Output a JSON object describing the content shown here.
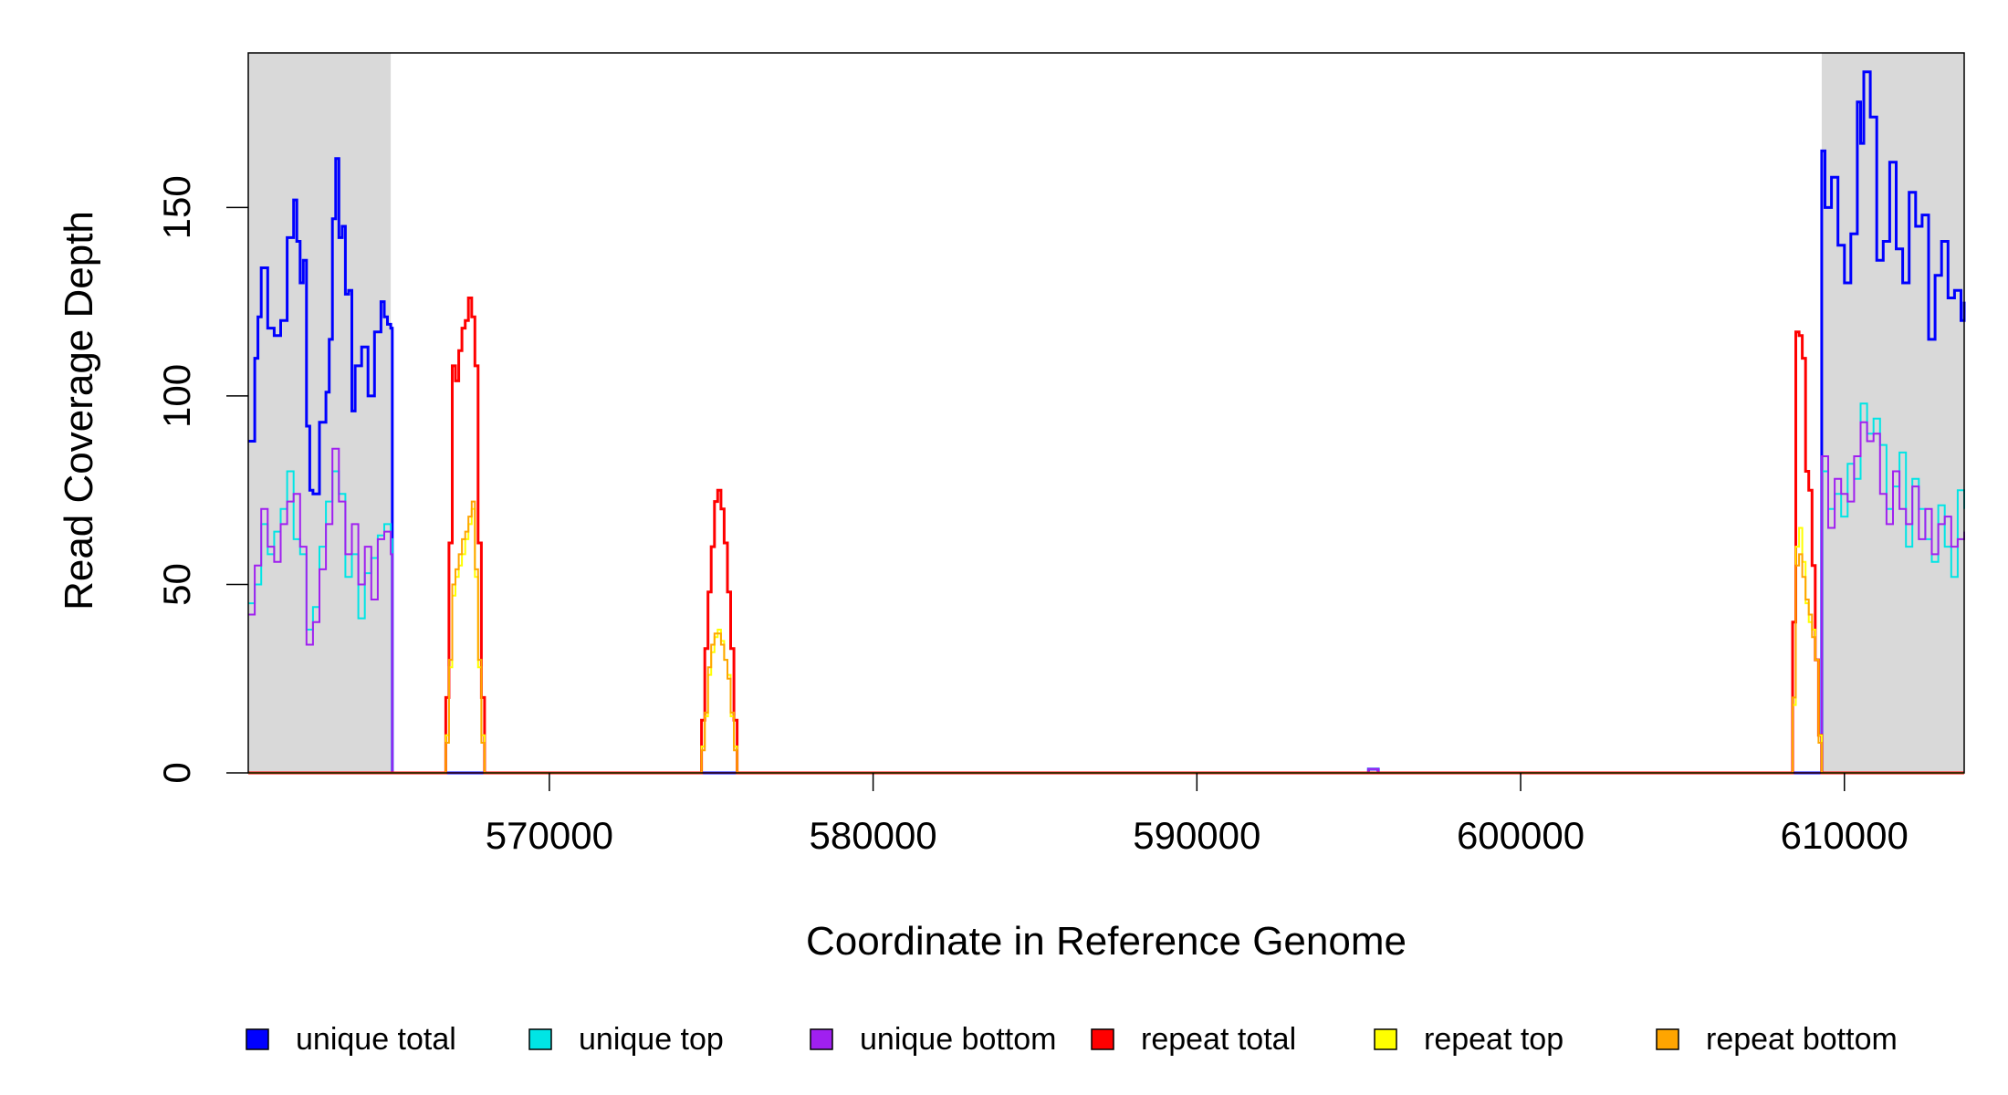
{
  "chart_data": {
    "type": "line",
    "title": "",
    "xlabel": "Coordinate in Reference Genome",
    "ylabel": "Read Coverage Depth",
    "xlim": [
      560700,
      613700
    ],
    "ylim": [
      0,
      191
    ],
    "x_ticks": [
      570000,
      580000,
      590000,
      600000,
      610000
    ],
    "x_tick_labels": [
      "570000",
      "580000",
      "590000",
      "600000",
      "610000"
    ],
    "y_ticks": [
      0,
      50,
      100,
      150
    ],
    "y_tick_labels": [
      "0",
      "50",
      "100",
      "150"
    ],
    "grid": false,
    "legend_placement": "bottom",
    "shaded_regions": [
      {
        "x0": 560700,
        "x1": 565100,
        "color": "#d9d9d9"
      },
      {
        "x0": 609300,
        "x1": 613700,
        "color": "#d9d9d9"
      }
    ],
    "series": [
      {
        "name": "unique total",
        "color": "#0000ff",
        "stroke_width": 3,
        "x": [
          560700,
          560900,
          561000,
          561100,
          561300,
          561500,
          561700,
          561900,
          562100,
          562200,
          562300,
          562400,
          562500,
          562600,
          562700,
          562900,
          563100,
          563200,
          563300,
          563400,
          563500,
          563600,
          563700,
          563800,
          563900,
          564000,
          564200,
          564400,
          564600,
          564800,
          564900,
          565000,
          565100,
          565150,
          566000,
          595000,
          595300,
          595600,
          596000,
          609200,
          609300,
          609400,
          609600,
          609800,
          610000,
          610200,
          610400,
          610500,
          610600,
          610800,
          611000,
          611200,
          611400,
          611600,
          611800,
          612000,
          612200,
          612400,
          612600,
          612800,
          613000,
          613200,
          613400,
          613600,
          613700
        ],
        "y": [
          88,
          110,
          121,
          134,
          118,
          116,
          120,
          142,
          152,
          141,
          130,
          136,
          92,
          75,
          74,
          93,
          101,
          115,
          147,
          163,
          142,
          145,
          127,
          128,
          96,
          108,
          113,
          100,
          117,
          125,
          121,
          119,
          118,
          0,
          0,
          0,
          1,
          0,
          0,
          0,
          165,
          150,
          158,
          140,
          130,
          143,
          178,
          167,
          186,
          174,
          136,
          141,
          162,
          139,
          130,
          154,
          145,
          148,
          115,
          132,
          141,
          126,
          128,
          120,
          125
        ]
      },
      {
        "name": "unique top",
        "color": "#00e5e5",
        "stroke_width": 2,
        "x": [
          560700,
          560900,
          561100,
          561300,
          561500,
          561700,
          561900,
          562100,
          562300,
          562500,
          562700,
          562900,
          563100,
          563300,
          563500,
          563700,
          563900,
          564100,
          564300,
          564500,
          564700,
          564900,
          565100,
          565150,
          566000,
          595000,
          595300,
          595600,
          596000,
          609200,
          609300,
          609500,
          609700,
          609900,
          610100,
          610300,
          610500,
          610700,
          610900,
          611100,
          611300,
          611500,
          611700,
          611900,
          612100,
          612300,
          612500,
          612700,
          612900,
          613100,
          613300,
          613500,
          613700
        ],
        "y": [
          45,
          50,
          66,
          58,
          64,
          70,
          80,
          62,
          58,
          38,
          44,
          60,
          72,
          80,
          74,
          52,
          58,
          41,
          53,
          57,
          63,
          66,
          62,
          0,
          0,
          0,
          1,
          0,
          0,
          0,
          80,
          70,
          74,
          68,
          82,
          78,
          98,
          90,
          94,
          87,
          70,
          76,
          85,
          60,
          78,
          70,
          62,
          56,
          71,
          60,
          52,
          75,
          70
        ]
      },
      {
        "name": "unique bottom",
        "color": "#a020f0",
        "stroke_width": 2,
        "x": [
          560700,
          560900,
          561100,
          561300,
          561500,
          561700,
          561900,
          562100,
          562300,
          562500,
          562700,
          562900,
          563100,
          563300,
          563500,
          563700,
          563900,
          564100,
          564300,
          564500,
          564700,
          564900,
          565100,
          565150,
          566000,
          595000,
          595300,
          595600,
          596000,
          609200,
          609300,
          609500,
          609700,
          609900,
          610100,
          610300,
          610500,
          610700,
          610900,
          611100,
          611300,
          611500,
          611700,
          611900,
          612100,
          612300,
          612500,
          612700,
          612900,
          613100,
          613300,
          613500,
          613700
        ],
        "y": [
          42,
          55,
          70,
          60,
          56,
          66,
          72,
          74,
          60,
          34,
          40,
          54,
          66,
          86,
          72,
          58,
          66,
          50,
          60,
          46,
          62,
          64,
          58,
          0,
          0,
          0,
          1,
          0,
          0,
          0,
          84,
          65,
          78,
          74,
          72,
          84,
          93,
          88,
          90,
          74,
          66,
          80,
          70,
          66,
          76,
          62,
          70,
          58,
          66,
          68,
          60,
          62,
          64
        ]
      },
      {
        "name": "repeat total",
        "color": "#ff0000",
        "stroke_width": 3,
        "x": [
          560700,
          566800,
          566900,
          567000,
          567100,
          567200,
          567300,
          567400,
          567500,
          567600,
          567700,
          567800,
          567900,
          568000,
          568100,
          568200,
          574600,
          574700,
          574800,
          574900,
          575000,
          575100,
          575200,
          575300,
          575400,
          575500,
          575600,
          575700,
          575800,
          608300,
          608400,
          608500,
          608600,
          608700,
          608800,
          608900,
          609000,
          609100,
          609200,
          609300,
          613700
        ],
        "y": [
          0,
          20,
          61,
          108,
          104,
          112,
          118,
          120,
          126,
          121,
          108,
          61,
          20,
          0,
          0,
          0,
          0,
          14,
          33,
          48,
          60,
          72,
          75,
          70,
          61,
          48,
          33,
          14,
          0,
          0,
          40,
          117,
          116,
          110,
          80,
          75,
          55,
          30,
          10,
          0,
          0
        ]
      },
      {
        "name": "repeat top",
        "color": "#ffff00",
        "stroke_width": 2,
        "x": [
          560700,
          566800,
          566900,
          567000,
          567100,
          567200,
          567300,
          567400,
          567500,
          567600,
          567700,
          567800,
          567900,
          568000,
          574600,
          574700,
          574800,
          574900,
          575000,
          575100,
          575200,
          575300,
          575400,
          575500,
          575600,
          575700,
          575800,
          608300,
          608400,
          608500,
          608600,
          608700,
          608800,
          608900,
          609000,
          609100,
          609200,
          609300,
          613700
        ],
        "y": [
          0,
          10,
          28,
          47,
          52,
          55,
          58,
          62,
          66,
          70,
          52,
          28,
          10,
          0,
          0,
          7,
          15,
          26,
          32,
          36,
          38,
          35,
          30,
          26,
          15,
          7,
          0,
          0,
          18,
          60,
          65,
          56,
          45,
          40,
          38,
          30,
          10,
          0,
          0
        ]
      },
      {
        "name": "repeat bottom",
        "color": "#ffa500",
        "stroke_width": 2,
        "x": [
          560700,
          566800,
          566900,
          567000,
          567100,
          567200,
          567300,
          567400,
          567500,
          567600,
          567700,
          567800,
          567900,
          568000,
          574600,
          574700,
          574800,
          574900,
          575000,
          575100,
          575200,
          575300,
          575400,
          575500,
          575600,
          575700,
          575800,
          608300,
          608400,
          608500,
          608600,
          608700,
          608800,
          608900,
          609000,
          609100,
          609200,
          609300,
          613700
        ],
        "y": [
          0,
          8,
          30,
          50,
          54,
          58,
          62,
          64,
          68,
          72,
          54,
          30,
          8,
          0,
          0,
          6,
          16,
          28,
          34,
          37,
          37,
          34,
          30,
          25,
          16,
          6,
          0,
          0,
          20,
          55,
          58,
          52,
          46,
          42,
          36,
          30,
          8,
          0,
          0
        ]
      }
    ],
    "legend": [
      {
        "label": "unique total",
        "color": "#0000ff"
      },
      {
        "label": "unique top",
        "color": "#00e5e5"
      },
      {
        "label": "unique bottom",
        "color": "#a020f0"
      },
      {
        "label": "repeat total",
        "color": "#ff0000"
      },
      {
        "label": "repeat top",
        "color": "#ffff00"
      },
      {
        "label": "repeat bottom",
        "color": "#ffa500"
      }
    ]
  }
}
